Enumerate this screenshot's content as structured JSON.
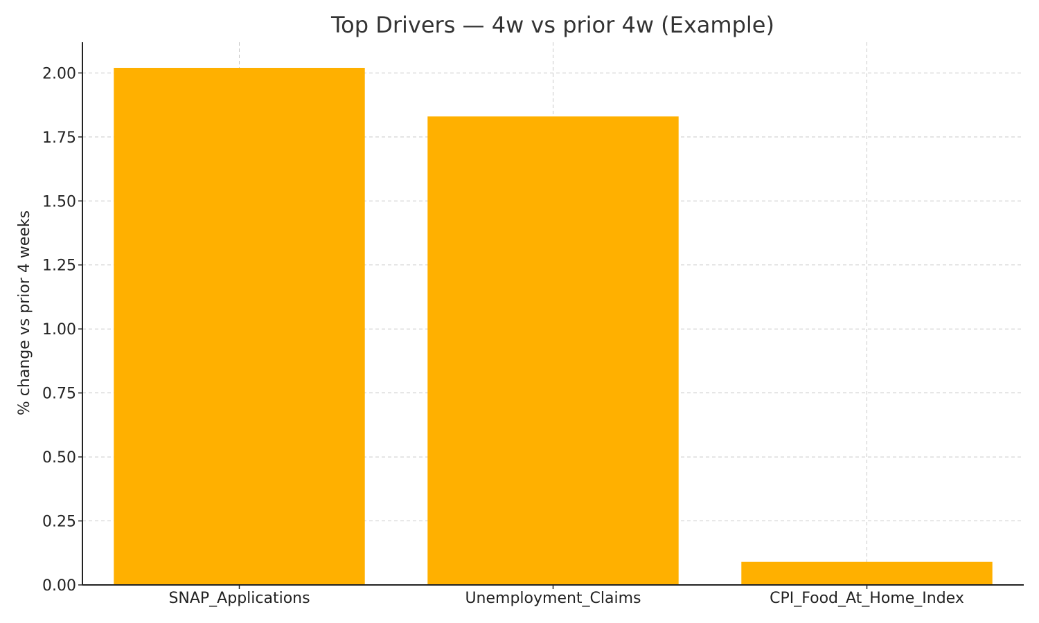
{
  "chart_data": {
    "type": "bar",
    "title": "Top Drivers — 4w vs prior 4w (Example)",
    "xlabel": "",
    "ylabel": "% change vs prior 4 weeks",
    "categories": [
      "SNAP_Applications",
      "Unemployment_Claims",
      "CPI_Food_At_Home_Index"
    ],
    "values": [
      2.02,
      1.83,
      0.09
    ],
    "ylim": [
      0,
      2.12
    ],
    "yticks": [
      0.0,
      0.25,
      0.5,
      0.75,
      1.0,
      1.25,
      1.5,
      1.75,
      2.0
    ],
    "ytick_labels": [
      "0.00",
      "0.25",
      "0.50",
      "0.75",
      "1.00",
      "1.25",
      "1.50",
      "1.75",
      "2.00"
    ],
    "grid": true,
    "bar_color": "#FFB000"
  }
}
